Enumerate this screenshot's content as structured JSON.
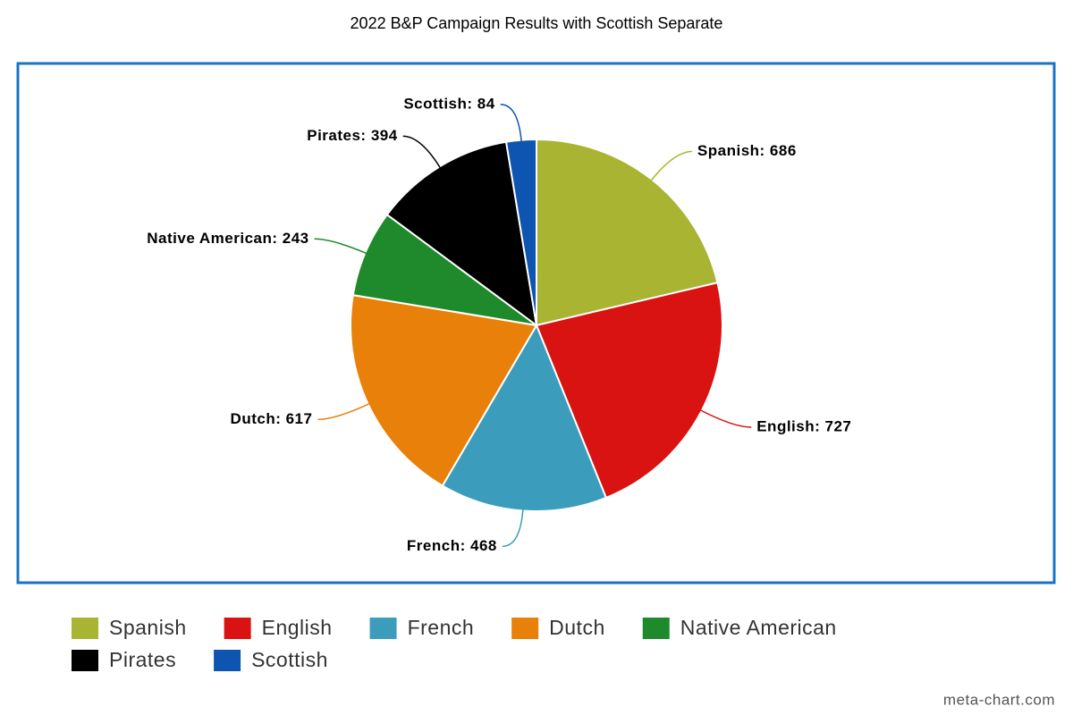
{
  "chart_data": {
    "type": "pie",
    "title": "2022 B&P Campaign Results with Scottish Separate",
    "categories": [
      "Spanish",
      "English",
      "French",
      "Dutch",
      "Native American",
      "Pirates",
      "Scottish"
    ],
    "values": [
      686,
      727,
      468,
      617,
      243,
      394,
      84
    ],
    "value_labels": [
      "Spanish: 686",
      "English: 727",
      "French: 468",
      "Dutch: 617",
      "Native American: 243",
      "Pirates: 394",
      "Scottish: 84"
    ],
    "colors": [
      "#a8b432",
      "#d91212",
      "#3b9dbb",
      "#e8800a",
      "#1f8a2c",
      "#000000",
      "#0d55b0"
    ],
    "legend": "bottom",
    "source": "meta-chart.com"
  }
}
